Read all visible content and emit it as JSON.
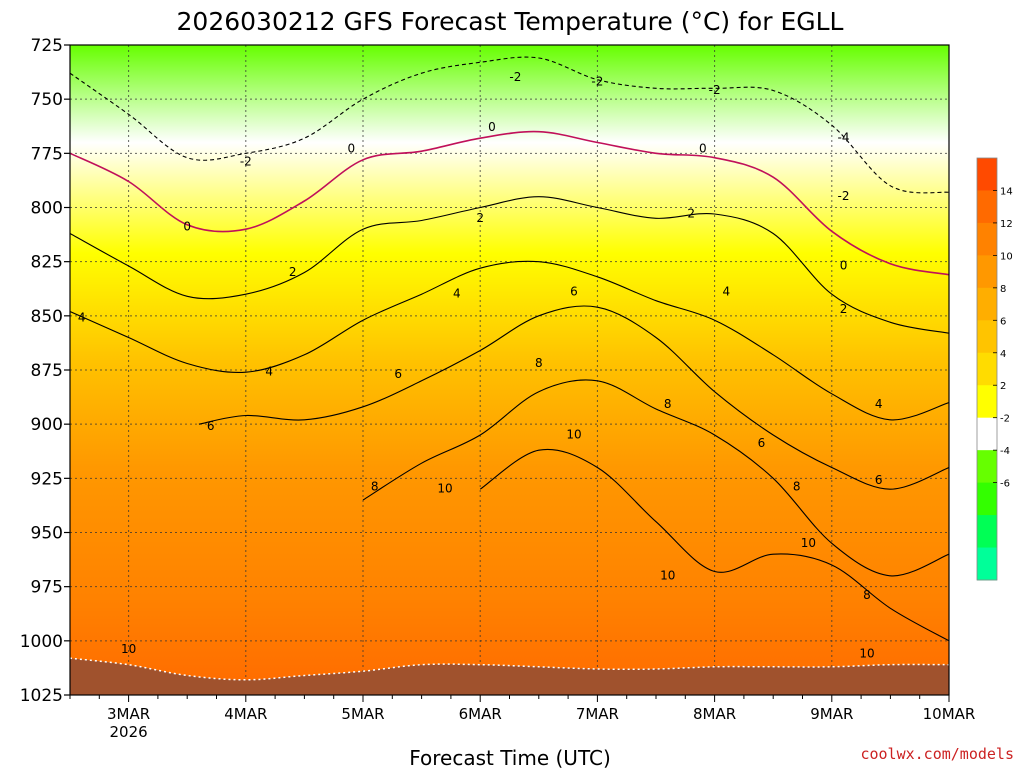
{
  "chart_data": {
    "type": "heatmap",
    "title": "2026030212 GFS Forecast Temperature (°C) for EGLL",
    "xlabel": "Forecast Time (UTC)",
    "credit": "coolwx.com/models",
    "y_axis": {
      "ticks": [
        "725",
        "750",
        "775",
        "800",
        "825",
        "850",
        "875",
        "900",
        "925",
        "950",
        "975",
        "1000",
        "1025"
      ],
      "range": [
        725,
        1025
      ],
      "inverted": true
    },
    "x_axis": {
      "range": [
        "2026-03-02T12:00",
        "2026-03-10T00:00"
      ],
      "ticks": [
        {
          "label": "3MAR",
          "sub": "2026",
          "day": 3
        },
        {
          "label": "4MAR",
          "day": 4
        },
        {
          "label": "5MAR",
          "day": 5
        },
        {
          "label": "6MAR",
          "day": 6
        },
        {
          "label": "7MAR",
          "day": 7
        },
        {
          "label": "8MAR",
          "day": 8
        },
        {
          "label": "9MAR",
          "day": 9
        },
        {
          "label": "10MAR",
          "day": 10
        }
      ]
    },
    "colorbar": {
      "labels": [
        "14",
        "12",
        "10",
        "8",
        "6",
        "4",
        "2",
        "-2",
        "-4",
        "-6"
      ],
      "colors": [
        "#ff4a00",
        "#ff6a00",
        "#ff8200",
        "#ff9800",
        "#ffae00",
        "#ffc400",
        "#ffdc00",
        "#ffff00",
        "#ffffff",
        "#66ff00",
        "#33ff00",
        "#00ff55",
        "#00ff99"
      ]
    },
    "contours": [
      {
        "value": -2,
        "pressure_by_day": [
          [
            2.5,
            738
          ],
          [
            3.0,
            757
          ],
          [
            3.5,
            777
          ],
          [
            4.0,
            775
          ],
          [
            4.5,
            768
          ],
          [
            5.0,
            750
          ],
          [
            5.5,
            738
          ],
          [
            6.0,
            733
          ],
          [
            6.5,
            731
          ],
          [
            7.0,
            741
          ],
          [
            7.5,
            745
          ],
          [
            8.0,
            745
          ],
          [
            8.5,
            746
          ],
          [
            9.0,
            762
          ],
          [
            9.5,
            790
          ],
          [
            10.0,
            793
          ]
        ]
      },
      {
        "value": 0,
        "pressure_by_day": [
          [
            2.5,
            775
          ],
          [
            3.0,
            788
          ],
          [
            3.5,
            808
          ],
          [
            4.0,
            810
          ],
          [
            4.5,
            797
          ],
          [
            5.0,
            778
          ],
          [
            5.5,
            774
          ],
          [
            6.0,
            768
          ],
          [
            6.5,
            765
          ],
          [
            7.0,
            770
          ],
          [
            7.5,
            775
          ],
          [
            8.0,
            777
          ],
          [
            8.5,
            786
          ],
          [
            9.0,
            811
          ],
          [
            9.5,
            826
          ],
          [
            10.0,
            831
          ]
        ]
      },
      {
        "value": 2,
        "pressure_by_day": [
          [
            2.5,
            812
          ],
          [
            3.0,
            827
          ],
          [
            3.5,
            841
          ],
          [
            4.0,
            840
          ],
          [
            4.5,
            830
          ],
          [
            5.0,
            810
          ],
          [
            5.5,
            806
          ],
          [
            6.0,
            800
          ],
          [
            6.5,
            795
          ],
          [
            7.0,
            800
          ],
          [
            7.5,
            805
          ],
          [
            8.0,
            803
          ],
          [
            8.5,
            812
          ],
          [
            9.0,
            840
          ],
          [
            9.5,
            853
          ],
          [
            10.0,
            858
          ]
        ]
      },
      {
        "value": 4,
        "pressure_by_day": [
          [
            2.5,
            848
          ],
          [
            3.0,
            860
          ],
          [
            3.5,
            872
          ],
          [
            4.0,
            876
          ],
          [
            4.5,
            868
          ],
          [
            5.0,
            852
          ],
          [
            5.5,
            840
          ],
          [
            6.0,
            828
          ],
          [
            6.5,
            825
          ],
          [
            7.0,
            832
          ],
          [
            7.5,
            843
          ],
          [
            8.0,
            852
          ],
          [
            8.5,
            868
          ],
          [
            9.0,
            886
          ],
          [
            9.5,
            898
          ],
          [
            10.0,
            890
          ]
        ]
      },
      {
        "value": 6,
        "pressure_by_day": [
          [
            3.6,
            900
          ],
          [
            4.0,
            896
          ],
          [
            4.5,
            898
          ],
          [
            5.0,
            892
          ],
          [
            5.5,
            880
          ],
          [
            6.0,
            866
          ],
          [
            6.5,
            850
          ],
          [
            7.0,
            846
          ],
          [
            7.5,
            860
          ],
          [
            8.0,
            885
          ],
          [
            8.5,
            905
          ],
          [
            9.0,
            920
          ],
          [
            9.5,
            930
          ],
          [
            10.0,
            920
          ]
        ]
      },
      {
        "value": 8,
        "pressure_by_day": [
          [
            5.0,
            935
          ],
          [
            5.5,
            918
          ],
          [
            6.0,
            905
          ],
          [
            6.5,
            885
          ],
          [
            7.0,
            880
          ],
          [
            7.5,
            893
          ],
          [
            8.0,
            905
          ],
          [
            8.5,
            925
          ],
          [
            9.0,
            955
          ],
          [
            9.5,
            970
          ],
          [
            10.0,
            960
          ]
        ]
      },
      {
        "value": 10,
        "pressure_by_day": [
          [
            6.0,
            930
          ],
          [
            6.5,
            912
          ],
          [
            7.0,
            920
          ],
          [
            7.5,
            945
          ],
          [
            8.0,
            968
          ],
          [
            8.5,
            960
          ],
          [
            9.0,
            965
          ],
          [
            9.5,
            985
          ],
          [
            10.0,
            1000
          ]
        ]
      }
    ],
    "contour_labels": [
      {
        "text": "-2",
        "day": 4.0,
        "p": 779
      },
      {
        "text": "-2",
        "day": 6.3,
        "p": 740
      },
      {
        "text": "-2",
        "day": 7.0,
        "p": 742
      },
      {
        "text": "-2",
        "day": 8.0,
        "p": 746
      },
      {
        "text": "-4",
        "day": 9.1,
        "p": 768
      },
      {
        "text": "-2",
        "day": 9.1,
        "p": 795
      },
      {
        "text": "0",
        "day": 3.5,
        "p": 809
      },
      {
        "text": "0",
        "day": 4.9,
        "p": 773
      },
      {
        "text": "0",
        "day": 6.1,
        "p": 763
      },
      {
        "text": "0",
        "day": 7.9,
        "p": 773
      },
      {
        "text": "0",
        "day": 9.1,
        "p": 827
      },
      {
        "text": "2",
        "day": 4.4,
        "p": 830
      },
      {
        "text": "2",
        "day": 6.0,
        "p": 805
      },
      {
        "text": "2",
        "day": 7.8,
        "p": 803
      },
      {
        "text": "2",
        "day": 9.1,
        "p": 847
      },
      {
        "text": "4",
        "day": 2.6,
        "p": 851
      },
      {
        "text": "4",
        "day": 4.2,
        "p": 876
      },
      {
        "text": "4",
        "day": 5.8,
        "p": 840
      },
      {
        "text": "4",
        "day": 8.1,
        "p": 839
      },
      {
        "text": "4",
        "day": 9.4,
        "p": 891
      },
      {
        "text": "6",
        "day": 3.7,
        "p": 901
      },
      {
        "text": "6",
        "day": 5.3,
        "p": 877
      },
      {
        "text": "6",
        "day": 6.8,
        "p": 839
      },
      {
        "text": "6",
        "day": 8.4,
        "p": 909
      },
      {
        "text": "6",
        "day": 9.4,
        "p": 926
      },
      {
        "text": "8",
        "day": 5.1,
        "p": 929
      },
      {
        "text": "8",
        "day": 6.5,
        "p": 872
      },
      {
        "text": "8",
        "day": 7.6,
        "p": 891
      },
      {
        "text": "8",
        "day": 8.7,
        "p": 929
      },
      {
        "text": "8",
        "day": 9.3,
        "p": 979
      },
      {
        "text": "10",
        "day": 3.0,
        "p": 1004
      },
      {
        "text": "10",
        "day": 5.7,
        "p": 930
      },
      {
        "text": "10",
        "day": 6.8,
        "p": 905
      },
      {
        "text": "10",
        "day": 7.6,
        "p": 970
      },
      {
        "text": "10",
        "day": 8.8,
        "p": 955
      },
      {
        "text": "10",
        "day": 9.3,
        "p": 1006
      }
    ],
    "surface_pressure_by_day": [
      [
        2.5,
        1008
      ],
      [
        3.0,
        1011
      ],
      [
        3.5,
        1016
      ],
      [
        4.0,
        1018
      ],
      [
        4.5,
        1016
      ],
      [
        5.0,
        1014
      ],
      [
        5.5,
        1011
      ],
      [
        6.0,
        1011
      ],
      [
        6.5,
        1012
      ],
      [
        7.0,
        1013
      ],
      [
        7.5,
        1013
      ],
      [
        8.0,
        1012
      ],
      [
        8.5,
        1012
      ],
      [
        9.0,
        1012
      ],
      [
        9.5,
        1011
      ],
      [
        10.0,
        1011
      ]
    ]
  }
}
